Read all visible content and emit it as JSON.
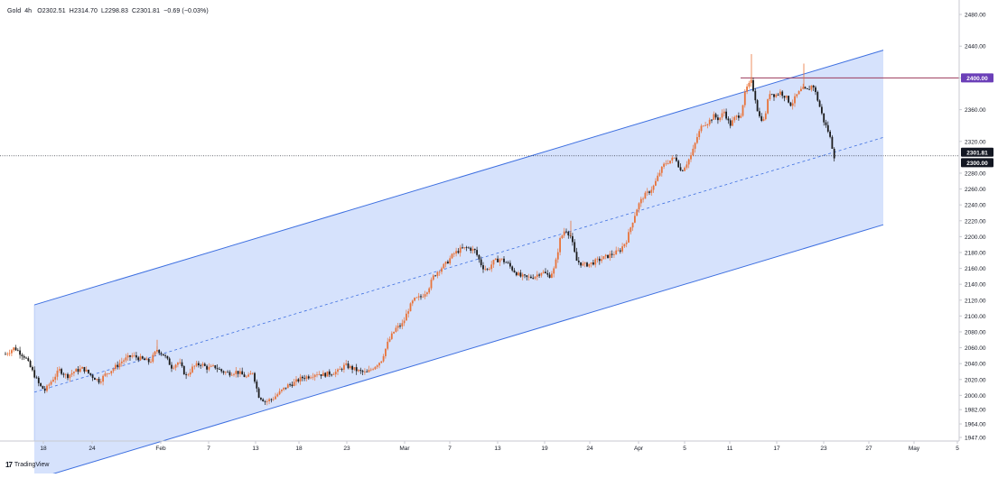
{
  "header": {
    "symbol": "Gold",
    "interval": "4h",
    "open": "O2302.51",
    "high": "H2314.70",
    "low": "L2298.83",
    "close": "C2301.81",
    "change": "−0.69 (−0.03%)"
  },
  "brand": {
    "name": "TradingView"
  },
  "colors": {
    "up": "#e8733a",
    "down": "#1b1b1b",
    "channel_fill": "#cfddfb",
    "channel_line": "#3d6fe0",
    "resistance_line": "#9c3a5a",
    "resistance_badge": "#6b3fb8",
    "last_badge": "#131722"
  },
  "chart_data": {
    "type": "candlestick",
    "ylim": [
      1947,
      2480
    ],
    "y_ticks": [
      2480,
      2440,
      2400,
      2360,
      2320,
      2280,
      2260,
      2240,
      2220,
      2200,
      2180,
      2160,
      2140,
      2120,
      2100,
      2080,
      2060,
      2040,
      2020,
      2000,
      1982,
      1964,
      1947
    ],
    "x_ticks": [
      "18",
      "24",
      "Feb",
      "7",
      "13",
      "18",
      "23",
      "Mar",
      "7",
      "13",
      "19",
      "24",
      "Apr",
      "5",
      "11",
      "17",
      "23",
      "27",
      "May",
      "5"
    ],
    "price_labels": [
      {
        "value": 2400.0,
        "text": "2400.00",
        "style": "resistance"
      },
      {
        "value": 2301.81,
        "text": "2301.81",
        "style": "last"
      },
      {
        "value": 2300.0,
        "text": "2300.00",
        "style": "level"
      }
    ],
    "horizontal_lines": [
      {
        "value": 2400.0,
        "style": "solid"
      },
      {
        "value": 2301.81,
        "style": "dotted"
      }
    ],
    "channel": {
      "start_index": 14,
      "start_mid": 2004,
      "end_index": 448,
      "end_mid": 2325,
      "half_width": 110
    },
    "path": [
      [
        0,
        2052
      ],
      [
        10,
        2060
      ],
      [
        22,
        2048
      ],
      [
        30,
        2030
      ],
      [
        38,
        2012
      ],
      [
        44,
        2006
      ],
      [
        52,
        2020
      ],
      [
        60,
        2032
      ],
      [
        68,
        2024
      ],
      [
        76,
        2030
      ],
      [
        86,
        2034
      ],
      [
        96,
        2024
      ],
      [
        104,
        2018
      ],
      [
        112,
        2028
      ],
      [
        120,
        2034
      ],
      [
        130,
        2044
      ],
      [
        140,
        2050
      ],
      [
        150,
        2046
      ],
      [
        160,
        2042
      ],
      [
        168,
        2058
      ],
      [
        176,
        2050
      ],
      [
        184,
        2036
      ],
      [
        192,
        2042
      ],
      [
        200,
        2024
      ],
      [
        208,
        2036
      ],
      [
        216,
        2040
      ],
      [
        224,
        2034
      ],
      [
        232,
        2036
      ],
      [
        240,
        2030
      ],
      [
        248,
        2028
      ],
      [
        256,
        2030
      ],
      [
        262,
        2026
      ],
      [
        268,
        2022
      ],
      [
        274,
        2030
      ],
      [
        280,
        2000
      ],
      [
        288,
        1992
      ],
      [
        296,
        1996
      ],
      [
        304,
        2004
      ],
      [
        312,
        2012
      ],
      [
        320,
        2016
      ],
      [
        328,
        2022
      ],
      [
        336,
        2024
      ],
      [
        344,
        2028
      ],
      [
        352,
        2026
      ],
      [
        360,
        2028
      ],
      [
        368,
        2030
      ],
      [
        376,
        2038
      ],
      [
        384,
        2034
      ],
      [
        392,
        2030
      ],
      [
        400,
        2028
      ],
      [
        408,
        2036
      ],
      [
        416,
        2044
      ],
      [
        424,
        2068
      ],
      [
        432,
        2084
      ],
      [
        440,
        2090
      ],
      [
        446,
        2108
      ],
      [
        452,
        2120
      ],
      [
        460,
        2124
      ],
      [
        468,
        2134
      ],
      [
        474,
        2150
      ],
      [
        480,
        2158
      ],
      [
        488,
        2166
      ],
      [
        496,
        2178
      ],
      [
        504,
        2184
      ],
      [
        512,
        2186
      ],
      [
        520,
        2182
      ],
      [
        528,
        2162
      ],
      [
        534,
        2158
      ],
      [
        540,
        2168
      ],
      [
        548,
        2172
      ],
      [
        556,
        2166
      ],
      [
        562,
        2158
      ],
      [
        570,
        2150
      ],
      [
        578,
        2148
      ],
      [
        586,
        2150
      ],
      [
        594,
        2156
      ],
      [
        602,
        2150
      ],
      [
        608,
        2160
      ],
      [
        614,
        2196
      ],
      [
        620,
        2210
      ],
      [
        626,
        2200
      ],
      [
        632,
        2170
      ],
      [
        640,
        2164
      ],
      [
        648,
        2166
      ],
      [
        656,
        2170
      ],
      [
        664,
        2174
      ],
      [
        672,
        2178
      ],
      [
        680,
        2182
      ],
      [
        688,
        2196
      ],
      [
        694,
        2218
      ],
      [
        700,
        2238
      ],
      [
        706,
        2250
      ],
      [
        712,
        2256
      ],
      [
        718,
        2264
      ],
      [
        724,
        2280
      ],
      [
        730,
        2292
      ],
      [
        736,
        2296
      ],
      [
        742,
        2300
      ],
      [
        748,
        2282
      ],
      [
        754,
        2292
      ],
      [
        760,
        2304
      ],
      [
        766,
        2326
      ],
      [
        772,
        2342
      ],
      [
        778,
        2344
      ],
      [
        784,
        2352
      ],
      [
        790,
        2348
      ],
      [
        796,
        2358
      ],
      [
        802,
        2340
      ],
      [
        808,
        2350
      ],
      [
        814,
        2354
      ],
      [
        820,
        2386
      ],
      [
        826,
        2395
      ],
      [
        830,
        2376
      ],
      [
        834,
        2352
      ],
      [
        840,
        2346
      ],
      [
        846,
        2382
      ],
      [
        852,
        2378
      ],
      [
        858,
        2382
      ],
      [
        864,
        2376
      ],
      [
        870,
        2366
      ],
      [
        876,
        2378
      ],
      [
        882,
        2386
      ],
      [
        888,
        2384
      ],
      [
        894,
        2392
      ],
      [
        900,
        2370
      ],
      [
        906,
        2346
      ],
      [
        912,
        2330
      ],
      [
        918,
        2300
      ]
    ],
    "spikes": [
      {
        "index": 826,
        "high": 2430
      },
      {
        "index": 884,
        "high": 2418
      },
      {
        "index": 626,
        "high": 2220
      },
      {
        "index": 168,
        "high": 2070
      }
    ]
  }
}
